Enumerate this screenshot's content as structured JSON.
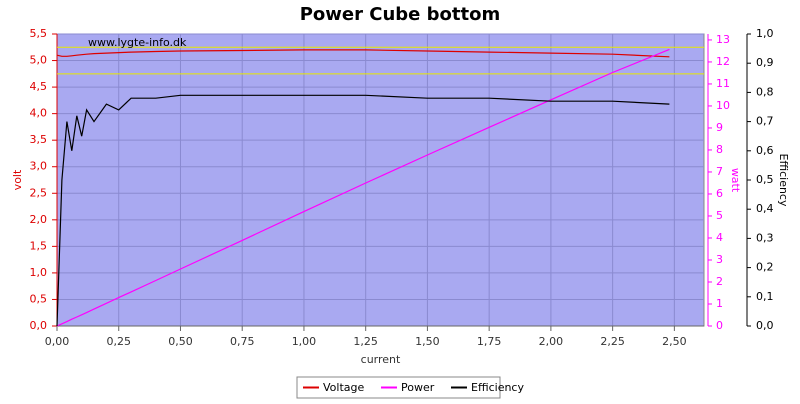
{
  "chart_data": {
    "type": "line",
    "title": "Power Cube bottom",
    "watermark": "www.lygte-info.dk",
    "x_label": "current",
    "y_label": "volt",
    "y2_label": "watt",
    "y3_label": "Efficiency",
    "x": [
      0,
      0.02,
      0.04,
      0.06,
      0.08,
      0.1,
      0.12,
      0.15,
      0.2,
      0.25,
      0.3,
      0.4,
      0.5,
      0.75,
      1.0,
      1.25,
      1.5,
      1.75,
      2.0,
      2.25,
      2.48
    ],
    "series": [
      {
        "name": "Voltage",
        "color": "#dd0000",
        "axis": "y",
        "values": [
          5.1,
          5.08,
          5.08,
          5.09,
          5.1,
          5.11,
          5.12,
          5.13,
          5.14,
          5.15,
          5.16,
          5.17,
          5.18,
          5.19,
          5.2,
          5.2,
          5.18,
          5.16,
          5.14,
          5.12,
          5.07
        ]
      },
      {
        "name": "Power",
        "color": "#ff00ff",
        "axis": "y2",
        "values": [
          0,
          0.1,
          0.2,
          0.31,
          0.41,
          0.51,
          0.61,
          0.77,
          1.03,
          1.29,
          1.55,
          2.07,
          2.59,
          3.89,
          5.2,
          6.5,
          7.77,
          9.03,
          10.28,
          11.52,
          12.57
        ]
      },
      {
        "name": "Efficiency",
        "color": "#000000",
        "axis": "y3",
        "values": [
          0,
          0.5,
          0.7,
          0.6,
          0.72,
          0.65,
          0.74,
          0.7,
          0.76,
          0.74,
          0.78,
          0.78,
          0.79,
          0.79,
          0.79,
          0.79,
          0.78,
          0.78,
          0.77,
          0.77,
          0.76
        ]
      }
    ],
    "hlines": [
      5.25,
      4.75
    ],
    "hline_color": "#e8e800",
    "xlim": [
      0,
      2.62
    ],
    "xticks": [
      {
        "value": 0,
        "label": "0,00"
      },
      {
        "value": 0.25,
        "label": "0,25"
      },
      {
        "value": 0.5,
        "label": "0,50"
      },
      {
        "value": 0.75,
        "label": "0,75"
      },
      {
        "value": 1,
        "label": "1,00"
      },
      {
        "value": 1.25,
        "label": "1,25"
      },
      {
        "value": 1.5,
        "label": "1,50"
      },
      {
        "value": 1.75,
        "label": "1,75"
      },
      {
        "value": 2,
        "label": "2,00"
      },
      {
        "value": 2.25,
        "label": "2,25"
      },
      {
        "value": 2.5,
        "label": "2,50"
      }
    ],
    "ylim": [
      0,
      5.5
    ],
    "yticks": [
      {
        "value": 0,
        "label": "0,0"
      },
      {
        "value": 0.5,
        "label": "0,5"
      },
      {
        "value": 1,
        "label": "1,0"
      },
      {
        "value": 1.5,
        "label": "1,5"
      },
      {
        "value": 2,
        "label": "2,0"
      },
      {
        "value": 2.5,
        "label": "2,5"
      },
      {
        "value": 3,
        "label": "3,0"
      },
      {
        "value": 3.5,
        "label": "3,5"
      },
      {
        "value": 4,
        "label": "4,0"
      },
      {
        "value": 4.5,
        "label": "4,5"
      },
      {
        "value": 5,
        "label": "5,0"
      },
      {
        "value": 5.5,
        "label": "5,5"
      }
    ],
    "y2lim": [
      0,
      13.27
    ],
    "y2ticks": [
      0,
      1,
      2,
      3,
      4,
      5,
      6,
      7,
      8,
      9,
      10,
      11,
      12,
      13
    ],
    "y3lim": [
      0,
      1
    ],
    "y3ticks": [
      {
        "value": 0,
        "label": "0,0"
      },
      {
        "value": 0.1,
        "label": "0,1"
      },
      {
        "value": 0.2,
        "label": "0,2"
      },
      {
        "value": 0.3,
        "label": "0,3"
      },
      {
        "value": 0.4,
        "label": "0,4"
      },
      {
        "value": 0.5,
        "label": "0,5"
      },
      {
        "value": 0.6,
        "label": "0,6"
      },
      {
        "value": 0.7,
        "label": "0,7"
      },
      {
        "value": 0.8,
        "label": "0,8"
      },
      {
        "value": 0.9,
        "label": "0,9"
      },
      {
        "value": 1,
        "label": "1,0"
      }
    ],
    "grid": true,
    "legend": "bottom"
  }
}
